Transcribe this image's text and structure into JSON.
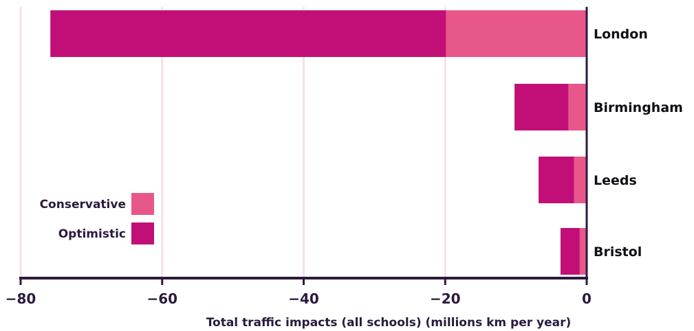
{
  "chart_data": {
    "type": "bar",
    "orientation": "horizontal",
    "stacked": "overlay",
    "categories": [
      "London",
      "Birmingham",
      "Leeds",
      "Bristol"
    ],
    "series": [
      {
        "name": "Optimistic",
        "color": "#c20f78",
        "values": [
          -75.8,
          -10.2,
          -6.8,
          -3.7
        ]
      },
      {
        "name": "Conservative",
        "color": "#e8578a",
        "values": [
          -19.9,
          -2.6,
          -1.8,
          -1.0
        ]
      }
    ],
    "xlabel": "Total traffic impacts (all schools) (millions km per year)",
    "xlim": [
      -80,
      0
    ],
    "xticks": [
      -80,
      -60,
      -40,
      -20,
      0
    ],
    "xtick_labels": [
      "−80",
      "−60",
      "−40",
      "−20",
      "0"
    ],
    "grid": "vertical",
    "legend": {
      "position": "bottom-left",
      "order": [
        "Conservative",
        "Optimistic"
      ]
    },
    "colors": {
      "axis": "#2b1a3d",
      "grid": "#f7dfe8"
    }
  }
}
